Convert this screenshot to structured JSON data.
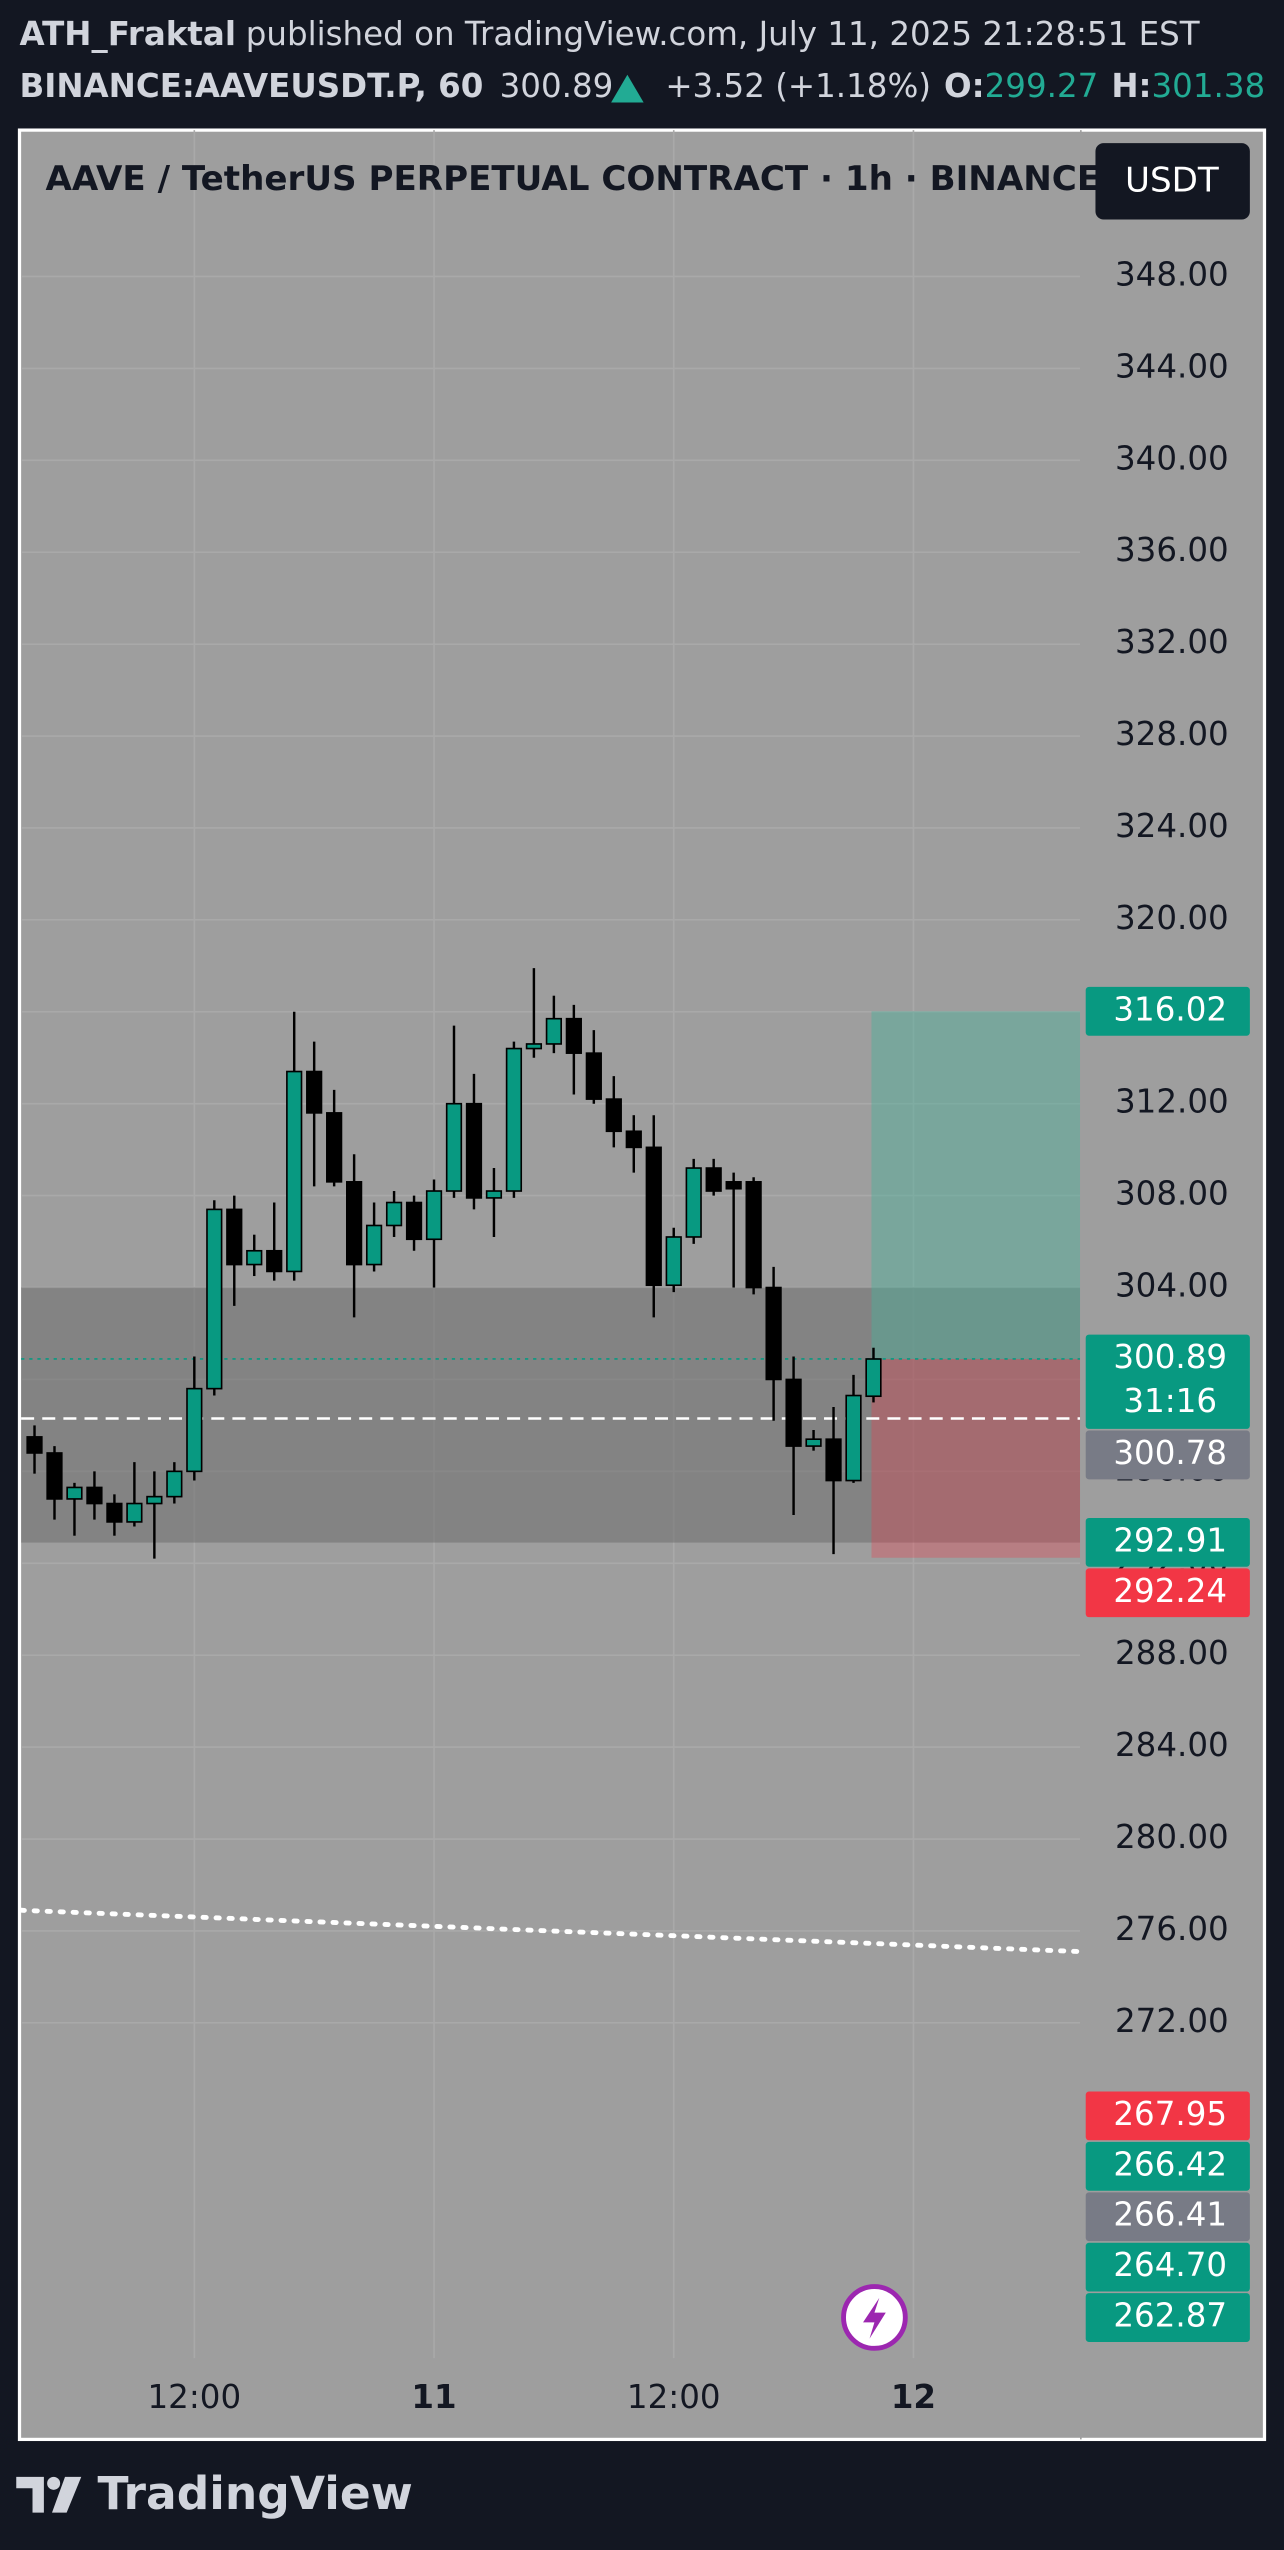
{
  "header": {
    "author": "ATH_Fraktal",
    "published": "published on TradingView.com, July 11, 2025 21:28:51 EST",
    "symbol": "BINANCE:AAVEUSDT.P, 60",
    "price": "300.89",
    "change": "+3.52 (+1.18%)",
    "open_label": "O:",
    "open": "299.27",
    "high_label": "H:",
    "high": "301.38"
  },
  "chart_data": {
    "type": "candlestick",
    "title": "AAVE / TetherUS PERPETUAL CONTRACT · 1h · BINANCE",
    "currency": "USDT",
    "x": [
      -20,
      -19,
      -18,
      -17,
      -16,
      -15,
      -14,
      -13,
      -12,
      -11,
      -10,
      -9,
      -8,
      -7,
      -6,
      -5,
      -4,
      -3,
      -2,
      -1,
      0,
      1,
      2,
      3,
      4,
      5,
      6,
      7,
      8,
      9,
      10,
      11,
      12,
      13,
      14,
      15,
      16,
      17,
      18,
      19,
      20,
      21,
      22
    ],
    "open": [
      297.5,
      296.8,
      294.8,
      295.3,
      294.6,
      293.8,
      294.6,
      294.9,
      296,
      299.6,
      307.4,
      305,
      305.6,
      304.7,
      313.4,
      311.6,
      308.6,
      305,
      306.7,
      307.7,
      306.1,
      308.2,
      312,
      307.9,
      308.2,
      314.4,
      314.6,
      315.7,
      314.2,
      312.2,
      310.8,
      310.1,
      304.1,
      306.2,
      309.2,
      308.6,
      308.6,
      304,
      300,
      297.1,
      297.4,
      295.6,
      299.27
    ],
    "high": [
      298,
      297.1,
      295.5,
      296,
      295,
      296.4,
      296,
      296.4,
      301,
      307.8,
      308,
      306.3,
      307.7,
      316,
      314.7,
      312.6,
      309.8,
      307.7,
      308.2,
      308,
      308.7,
      315.4,
      313.3,
      309.2,
      314.7,
      317.9,
      316.7,
      316.3,
      315.2,
      313.2,
      311.5,
      311.5,
      306.6,
      309.6,
      309.6,
      309,
      308.8,
      304.9,
      301,
      297.8,
      298.8,
      300.2,
      301.38
    ],
    "low": [
      295.9,
      293.9,
      293.2,
      293.9,
      293.2,
      293.6,
      292.2,
      294.6,
      295.6,
      299.3,
      303.2,
      304.5,
      304.3,
      304.3,
      308.4,
      308.4,
      302.7,
      304.7,
      306.2,
      305.6,
      304,
      307.9,
      307.4,
      306.2,
      307.9,
      314,
      314.2,
      312.4,
      312,
      310.1,
      309,
      302.7,
      303.8,
      305.9,
      308,
      304,
      303.7,
      298.2,
      294.1,
      296.9,
      292.4,
      295.5,
      299
    ],
    "close": [
      296.8,
      294.8,
      295.3,
      294.6,
      293.8,
      294.6,
      294.9,
      296,
      299.6,
      307.4,
      305,
      305.6,
      304.7,
      313.4,
      311.6,
      308.6,
      305,
      306.7,
      307.7,
      306.1,
      308.2,
      312,
      307.9,
      308.2,
      314.4,
      314.6,
      315.7,
      314.2,
      312.2,
      310.8,
      310.1,
      304.1,
      306.2,
      309.2,
      308.2,
      308.3,
      304,
      300,
      297.1,
      297.4,
      295.6,
      299.3,
      300.89
    ],
    "up_color": "#089981",
    "down_color": "#000000",
    "xlim": [
      -20.67,
      32.38
    ],
    "xticks": [
      {
        "value": -12,
        "label": "12:00"
      },
      {
        "value": 0,
        "label": "11"
      },
      {
        "value": 12,
        "label": "12:00"
      },
      {
        "value": 24,
        "label": "12"
      }
    ],
    "ylim": [
      257.41,
      354.37
    ],
    "yticks": [
      {
        "value": 348,
        "label": "348.00"
      },
      {
        "value": 344,
        "label": "344.00"
      },
      {
        "value": 340,
        "label": "340.00"
      },
      {
        "value": 336,
        "label": "336.00"
      },
      {
        "value": 332,
        "label": "332.00"
      },
      {
        "value": 328,
        "label": "328.00"
      },
      {
        "value": 324,
        "label": "324.00"
      },
      {
        "value": 320,
        "label": "320.00"
      },
      {
        "value": 316,
        "label": "316.00"
      },
      {
        "value": 312,
        "label": "312.00"
      },
      {
        "value": 308,
        "label": "308.00"
      },
      {
        "value": 304,
        "label": "304.00"
      },
      {
        "value": 300,
        "label": "300.00"
      },
      {
        "value": 296,
        "label": "296.00"
      },
      {
        "value": 292,
        "label": "292.00"
      },
      {
        "value": 288,
        "label": "288.00"
      },
      {
        "value": 284,
        "label": "284.00"
      },
      {
        "value": 280,
        "label": "280.00"
      },
      {
        "value": 276,
        "label": "276.00"
      },
      {
        "value": 272,
        "label": "272.00"
      }
    ],
    "grid": true,
    "zone": [
      292.9,
      304.0
    ],
    "position": {
      "x": [
        21.9,
        32.38
      ],
      "target": 316.02,
      "entry": 300.89,
      "stop": 292.24
    },
    "reference_line": 298.3,
    "dotted_line": {
      "x": [
        -20.67,
        32.38
      ],
      "values": [
        276.9,
        275.1
      ]
    },
    "countdown": "31:16",
    "price_labels": [
      {
        "value": 316.02,
        "label": "316.02",
        "color": "#089981"
      },
      {
        "value": 300.89,
        "label": "300.89",
        "color": "#089981"
      },
      {
        "value": 300.78,
        "label": "300.78",
        "color": "#787b86"
      },
      {
        "value": 292.91,
        "label": "292.91",
        "color": "#089981"
      },
      {
        "value": 292.24,
        "label": "292.24",
        "color": "#f23645"
      },
      {
        "value": 267.95,
        "label": "267.95",
        "color": "#f23645"
      },
      {
        "value": 266.42,
        "label": "266.42",
        "color": "#089981"
      },
      {
        "value": 266.41,
        "label": "266.41",
        "color": "#787b86"
      },
      {
        "value": 264.7,
        "label": "264.70",
        "color": "#089981"
      },
      {
        "value": 262.87,
        "label": "262.87",
        "color": "#089981"
      }
    ]
  },
  "footer": {
    "brand": "TradingView"
  }
}
